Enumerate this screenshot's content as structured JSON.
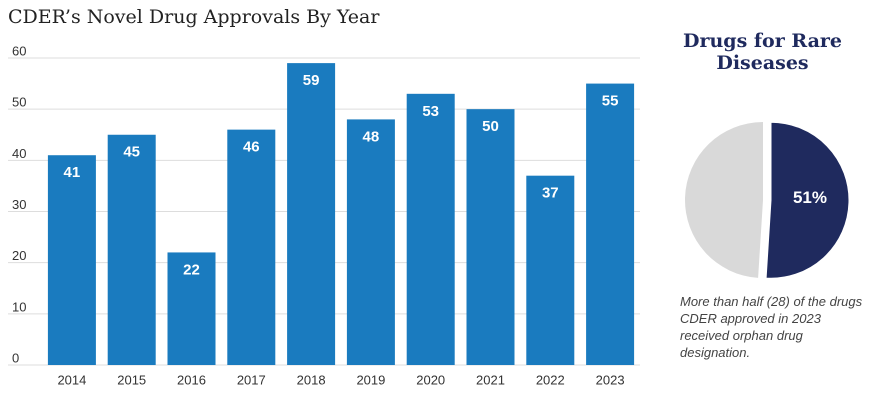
{
  "chart_data": [
    {
      "type": "bar",
      "title": "CDER’s Novel Drug Approvals By Year",
      "categories": [
        "2014",
        "2015",
        "2016",
        "2017",
        "2018",
        "2019",
        "2020",
        "2021",
        "2022",
        "2023"
      ],
      "values": [
        41,
        45,
        22,
        46,
        59,
        48,
        53,
        50,
        37,
        55
      ],
      "color": "#1a7bbf",
      "ylim": [
        0,
        60
      ],
      "yticks": [
        0,
        10,
        20,
        30,
        40,
        50,
        60
      ],
      "grid": true
    },
    {
      "type": "pie",
      "title": "Drugs for Rare Diseases",
      "values": [
        51,
        49
      ],
      "value_labels": [
        "51%",
        null
      ],
      "colors": [
        "#1f2a5e",
        "#d9d9d9"
      ],
      "caption": "More than half (28) of the drugs CDER approved in 2023 received orphan drug designation."
    }
  ]
}
